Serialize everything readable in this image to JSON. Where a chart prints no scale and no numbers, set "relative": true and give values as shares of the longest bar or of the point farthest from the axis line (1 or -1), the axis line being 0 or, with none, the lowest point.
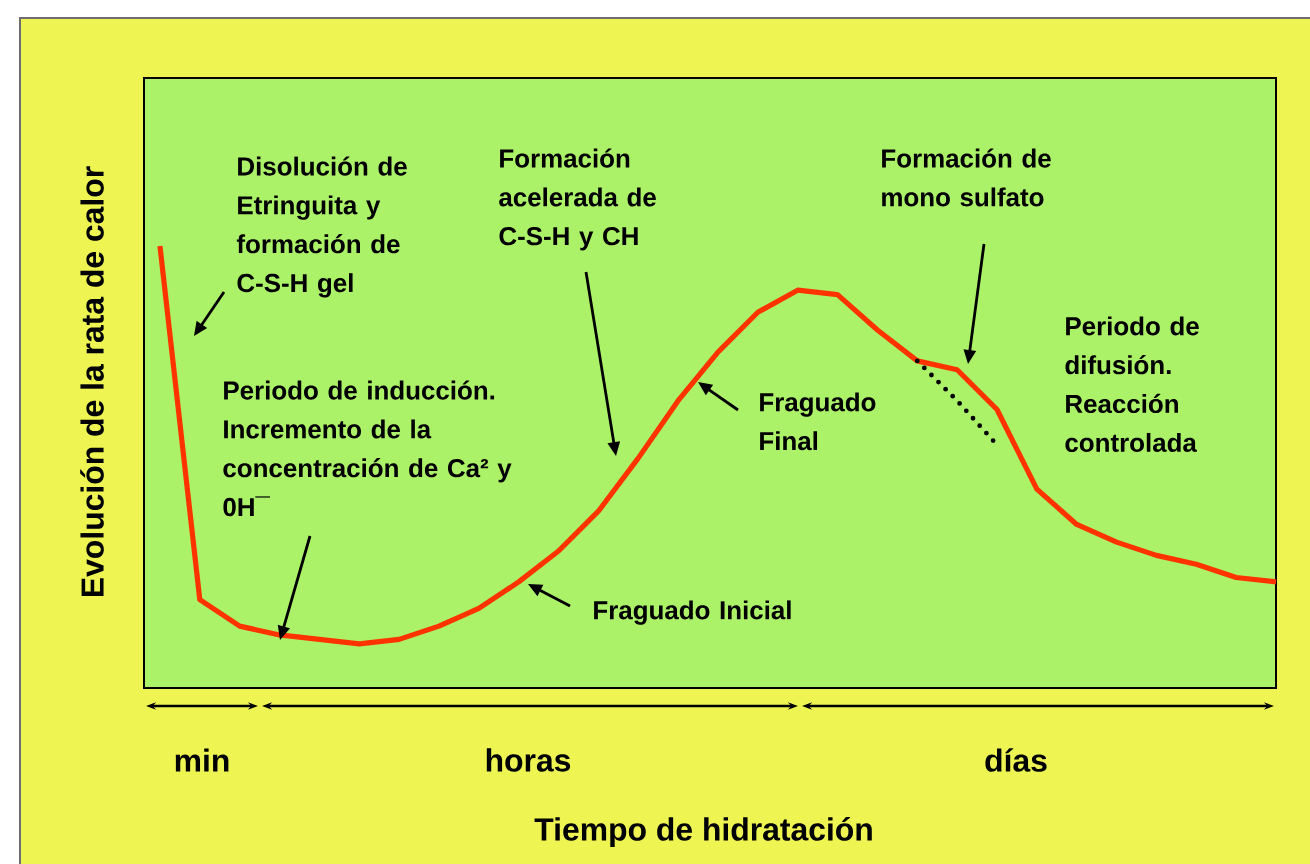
{
  "chart_data": {
    "type": "line",
    "relative": true,
    "xlabel": "Tiempo de hidratación",
    "ylabel": "Evolución de la rata de calor",
    "line_style": "solid",
    "categories": [
      null,
      null,
      null,
      null,
      null,
      null,
      null,
      null,
      null,
      null,
      null,
      null,
      null,
      null,
      null,
      null,
      null,
      null,
      null,
      null,
      null,
      null,
      null,
      null,
      null,
      null,
      null,
      null,
      null
    ],
    "series": [
      {
        "color": "#ff3300",
        "values": [
          1.0,
          0.2,
          0.14,
          0.12,
          0.11,
          0.1,
          0.11,
          0.14,
          0.18,
          0.24,
          0.31,
          0.4,
          0.52,
          0.65,
          0.76,
          0.85,
          0.9,
          0.89,
          0.81,
          0.74,
          0.72,
          0.63,
          0.45,
          0.37,
          0.33,
          0.3,
          0.28,
          0.25,
          0.24
        ]
      },
      {
        "color": "#000000",
        "line_style": "dotted",
        "values": [
          null,
          null,
          null,
          null,
          null,
          null,
          null,
          null,
          null,
          null,
          null,
          null,
          null,
          null,
          null,
          null,
          null,
          null,
          null,
          0.74,
          0.65,
          0.55,
          null,
          null,
          null,
          null,
          null,
          null,
          null
        ]
      }
    ],
    "annotations": [
      "Disolución de Etringuita y formación de C-S-H gel",
      "Periodo de inducción. Incremento de la concentración de Ca² y 0H¯",
      "Formación acelerada de C-S-H y CH",
      "Fraguado Inicial",
      "Fraguado Final",
      "Formación de mono sulfato",
      "Periodo de difusión. Reacción controlada",
      "min",
      "horas",
      "días"
    ]
  }
}
